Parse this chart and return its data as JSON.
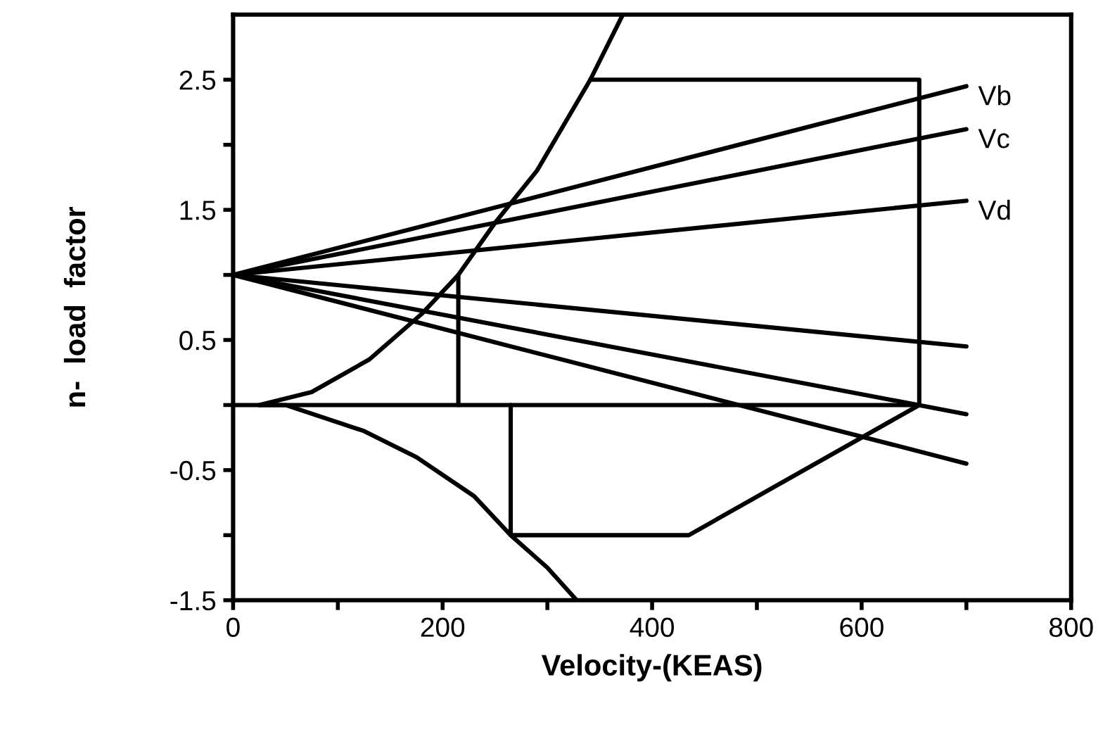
{
  "chart_data": {
    "type": "line",
    "xlabel": "Velocity-(KEAS)",
    "ylabel": "n-  load  factor",
    "xlim": [
      0,
      800
    ],
    "ylim": [
      -1.5,
      3
    ],
    "xticks": [
      0,
      {
        "value": 100,
        "label": null
      },
      200,
      {
        "value": 300,
        "label": null
      },
      400,
      {
        "value": 500,
        "label": null
      },
      600,
      {
        "value": 700,
        "label": null
      },
      800
    ],
    "yticks": [
      -1.5,
      {
        "value": -1,
        "label": null
      },
      -0.5,
      {
        "value": 0,
        "label": null
      },
      0.5,
      {
        "value": 1,
        "label": null
      },
      1.5,
      {
        "value": 2,
        "label": null
      },
      2.5
    ],
    "grid": false,
    "marker": "none",
    "line_style": "solid",
    "series": [
      {
        "color": "#000000",
        "x": [
          25,
          75,
          130,
          180,
          215,
          250,
          290,
          341,
          372
        ],
        "values": [
          0,
          0.1,
          0.35,
          0.7,
          1.0,
          1.4,
          1.8,
          2.5,
          3.0
        ]
      },
      {
        "color": "#000000",
        "x": [
          25,
          50,
          125,
          175,
          230,
          265,
          300,
          328
        ],
        "values": [
          0,
          0,
          -0.2,
          -0.4,
          -0.7,
          -1.0,
          -1.25,
          -1.5
        ]
      },
      {
        "color": "#000000",
        "x": [
          341,
          655,
          655,
          435,
          265,
          265
        ],
        "values": [
          2.5,
          2.5,
          0,
          -1.0,
          -1.0,
          0
        ]
      },
      {
        "color": "#000000",
        "x": [
          0,
          655
        ],
        "values": [
          0,
          0
        ]
      },
      {
        "color": "#000000",
        "x": [
          215,
          215
        ],
        "values": [
          0,
          1.0
        ]
      },
      {
        "name": "Vb",
        "color": "#000000",
        "x": [
          0,
          700
        ],
        "values": [
          1,
          2.45
        ]
      },
      {
        "name": "Vc",
        "color": "#000000",
        "x": [
          0,
          700
        ],
        "values": [
          1,
          2.12
        ]
      },
      {
        "name": "Vd",
        "color": "#000000",
        "x": [
          0,
          700
        ],
        "values": [
          1,
          1.57
        ]
      },
      {
        "color": "#000000",
        "x": [
          0,
          700
        ],
        "values": [
          1,
          0.45
        ]
      },
      {
        "color": "#000000",
        "x": [
          0,
          700
        ],
        "values": [
          1,
          -0.07
        ]
      },
      {
        "color": "#000000",
        "x": [
          0,
          700
        ],
        "values": [
          1,
          -0.45
        ]
      }
    ]
  }
}
